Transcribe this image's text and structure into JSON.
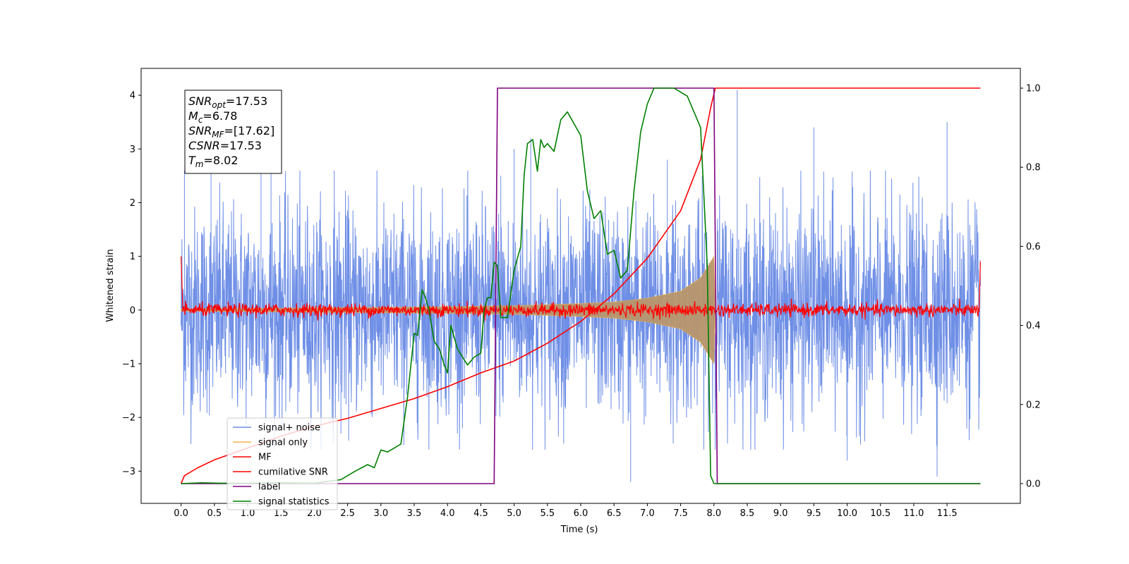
{
  "chart_data": {
    "type": "line",
    "xlabel": "Time (s)",
    "ylabel": "Whitened strain",
    "xlim": [
      -0.6,
      12.6
    ],
    "ylim": [
      -3.6,
      4.5
    ],
    "y2lim": [
      -0.05,
      1.05
    ],
    "x_ticks": [
      "0.0",
      "0.5",
      "1.0",
      "1.5",
      "2.0",
      "2.5",
      "3.0",
      "3.5",
      "4.0",
      "4.5",
      "5.0",
      "5.5",
      "6.0",
      "6.5",
      "7.0",
      "7.5",
      "8.0",
      "8.5",
      "9.0",
      "9.5",
      "10.0",
      "10.5",
      "11.0",
      "11.5"
    ],
    "y_ticks": [
      "4",
      "3",
      "2",
      "1",
      "0",
      "−1",
      "−2",
      "−3"
    ],
    "y2_ticks": [
      "1.0",
      "0.8",
      "0.6",
      "0.4",
      "0.2",
      "0.0"
    ],
    "legend_placement": "lower-left",
    "colors": {
      "noise": "#6f8fe6",
      "signal": "#f2b24a",
      "signal_fill": "#b8966b",
      "mf": "#ff0000",
      "csnr": "#ff0000",
      "label": "#800080",
      "stat": "#008000"
    },
    "annotation": {
      "snr_opt": {
        "name": "SNR",
        "sub": "opt",
        "value": "=17.53"
      },
      "mc": {
        "name": "M",
        "sub": "c",
        "value": "=6.78"
      },
      "snr_mf": {
        "name": "SNR",
        "sub": "MF",
        "value": "=[17.62]"
      },
      "csnr": {
        "name": "CSNR",
        "sub": "",
        "value": "=17.53"
      },
      "tm": {
        "name": "T",
        "sub": "m",
        "value": "=8.02"
      }
    },
    "series": [
      {
        "name": "signal+ noise",
        "axis": "left",
        "description_level": "noise band ~±1.2, peaks to about ±2.5",
        "x_range": [
          0,
          12
        ],
        "peak_events": [
          [
            0.05,
            2.6
          ],
          [
            0.45,
            2.6
          ],
          [
            1.2,
            2.6
          ],
          [
            1.35,
            2.7
          ],
          [
            2.3,
            2.6
          ],
          [
            4.8,
            2.5
          ],
          [
            5.0,
            3.0
          ],
          [
            5.25,
            3.2
          ],
          [
            7.3,
            2.8
          ],
          [
            8.35,
            4.1
          ],
          [
            9.5,
            3.4
          ],
          [
            11.5,
            3.5
          ],
          [
            6.75,
            -3.2
          ],
          [
            11.35,
            -3.1
          ],
          [
            2.4,
            -2.3
          ],
          [
            10.0,
            -2.8
          ]
        ]
      },
      {
        "name": "signal only",
        "axis": "left",
        "envelope": [
          [
            0,
            0.02
          ],
          [
            1,
            0.03
          ],
          [
            2,
            0.04
          ],
          [
            3,
            0.05
          ],
          [
            4,
            0.06
          ],
          [
            5,
            0.08
          ],
          [
            5.5,
            0.1
          ],
          [
            6,
            0.12
          ],
          [
            6.5,
            0.15
          ],
          [
            7,
            0.22
          ],
          [
            7.5,
            0.35
          ],
          [
            7.8,
            0.6
          ],
          [
            8.0,
            1.0
          ],
          [
            8.02,
            0
          ]
        ]
      },
      {
        "name": "MF",
        "axis": "left",
        "level": 0.0,
        "jitter": 0.06,
        "endpoints": [
          [
            0.0,
            1.0
          ],
          [
            12.0,
            0.9
          ]
        ]
      },
      {
        "name": "cumilative SNR",
        "axis": "right",
        "x": [
          0,
          0.05,
          0.25,
          0.5,
          1.0,
          1.5,
          2.0,
          2.5,
          3.0,
          3.5,
          4.0,
          4.5,
          5.0,
          5.5,
          6.0,
          6.5,
          7.0,
          7.5,
          7.8,
          7.95,
          8.02,
          9,
          10,
          11,
          12
        ],
        "y": [
          0,
          0.02,
          0.04,
          0.06,
          0.09,
          0.12,
          0.145,
          0.165,
          0.19,
          0.215,
          0.245,
          0.28,
          0.31,
          0.355,
          0.41,
          0.48,
          0.57,
          0.69,
          0.82,
          0.95,
          1.0,
          1.0,
          1.0,
          1.0,
          1.0
        ]
      },
      {
        "name": "label",
        "axis": "right",
        "x": [
          0,
          4.7,
          4.75,
          8.0,
          8.05,
          12.0
        ],
        "y": [
          0,
          0,
          1,
          1,
          0,
          0
        ]
      },
      {
        "name": "signal statistics",
        "axis": "right",
        "x": [
          0,
          0.3,
          0.6,
          1.0,
          1.5,
          2.0,
          2.4,
          2.6,
          2.8,
          2.9,
          3.0,
          3.1,
          3.3,
          3.4,
          3.5,
          3.55,
          3.62,
          3.67,
          3.72,
          3.8,
          3.88,
          3.95,
          4.0,
          4.05,
          4.15,
          4.3,
          4.4,
          4.5,
          4.55,
          4.6,
          4.65,
          4.7,
          4.75,
          4.8,
          4.9,
          5.0,
          5.05,
          5.1,
          5.15,
          5.2,
          5.28,
          5.35,
          5.4,
          5.45,
          5.5,
          5.55,
          5.6,
          5.7,
          5.8,
          6.0,
          6.1,
          6.2,
          6.3,
          6.4,
          6.5,
          6.6,
          6.7,
          6.8,
          6.9,
          7.0,
          7.1,
          7.15,
          7.2,
          7.4,
          7.6,
          7.8,
          7.9,
          7.95,
          8.0,
          8.05,
          8.1,
          8.2,
          9,
          10,
          11,
          12
        ],
        "y": [
          0,
          0.002,
          0.001,
          0.001,
          0.002,
          0.001,
          0.01,
          0.03,
          0.048,
          0.04,
          0.085,
          0.08,
          0.1,
          0.22,
          0.38,
          0.375,
          0.49,
          0.47,
          0.44,
          0.36,
          0.34,
          0.3,
          0.28,
          0.4,
          0.34,
          0.3,
          0.32,
          0.33,
          0.44,
          0.47,
          0.47,
          0.56,
          0.55,
          0.42,
          0.42,
          0.54,
          0.57,
          0.6,
          0.78,
          0.86,
          0.87,
          0.79,
          0.87,
          0.85,
          0.86,
          0.85,
          0.84,
          0.92,
          0.94,
          0.88,
          0.74,
          0.67,
          0.69,
          0.58,
          0.59,
          0.52,
          0.54,
          0.74,
          0.89,
          0.96,
          1.0,
          1.0,
          1.0,
          1.0,
          0.98,
          0.9,
          0.55,
          0.02,
          0.0,
          0.0,
          0.0,
          0.0,
          0.0,
          0.0,
          0.0,
          0.0
        ]
      }
    ]
  },
  "legend": {
    "items": [
      {
        "label": "signal+ noise",
        "color": "#6f8fe6"
      },
      {
        "label": "signal only",
        "color": "#f2b24a"
      },
      {
        "label": "MF",
        "color": "#ff0000"
      },
      {
        "label": "cumilative SNR",
        "color": "#ff0000"
      },
      {
        "label": "label",
        "color": "#800080"
      },
      {
        "label": "signal statistics",
        "color": "#008000"
      }
    ]
  }
}
